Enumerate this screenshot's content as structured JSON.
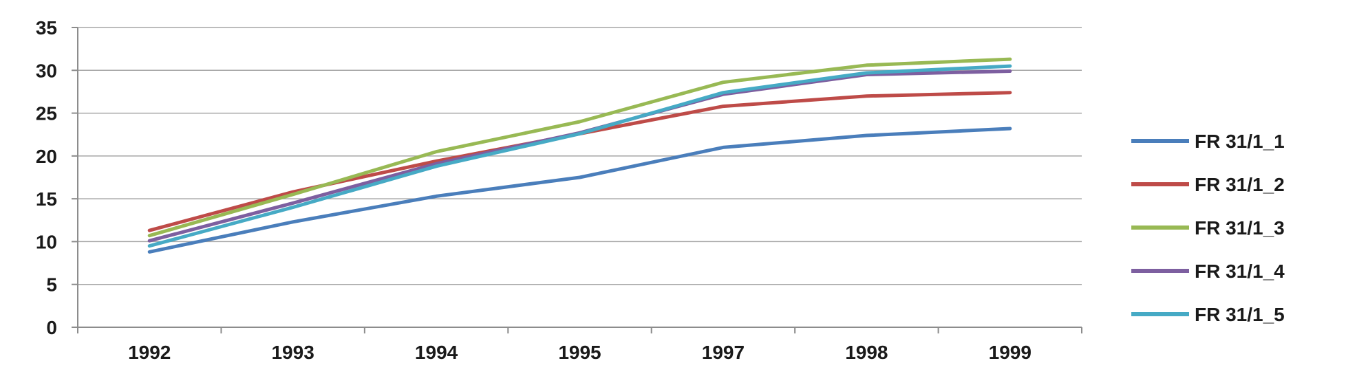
{
  "chart_data": {
    "type": "line",
    "title": "",
    "xlabel": "",
    "ylabel": "",
    "categories": [
      "1992",
      "1993",
      "1994",
      "1995",
      "1997",
      "1998",
      "1999"
    ],
    "ylim": [
      0,
      35
    ],
    "yticks": [
      "0",
      "5",
      "10",
      "15",
      "20",
      "25",
      "30",
      "35"
    ],
    "grid": true,
    "legend_position": "right",
    "series": [
      {
        "name": "FR 31/1_1",
        "color": "#4a7ebb",
        "values": [
          8.8,
          12.3,
          15.3,
          17.5,
          21.0,
          22.4,
          23.2
        ]
      },
      {
        "name": "FR 31/1_2",
        "color": "#be4b48",
        "values": [
          11.3,
          15.8,
          19.4,
          22.6,
          25.8,
          27.0,
          27.4
        ]
      },
      {
        "name": "FR 31/1_3",
        "color": "#98b954",
        "values": [
          10.7,
          15.5,
          20.5,
          24.0,
          28.6,
          30.6,
          31.3
        ]
      },
      {
        "name": "FR 31/1_4",
        "color": "#7d5fa0",
        "values": [
          10.1,
          14.5,
          19.1,
          22.7,
          27.2,
          29.5,
          29.9
        ]
      },
      {
        "name": "FR 31/1_5",
        "color": "#46aac5",
        "values": [
          9.5,
          14.0,
          18.8,
          22.6,
          27.4,
          29.7,
          30.5
        ]
      }
    ]
  }
}
